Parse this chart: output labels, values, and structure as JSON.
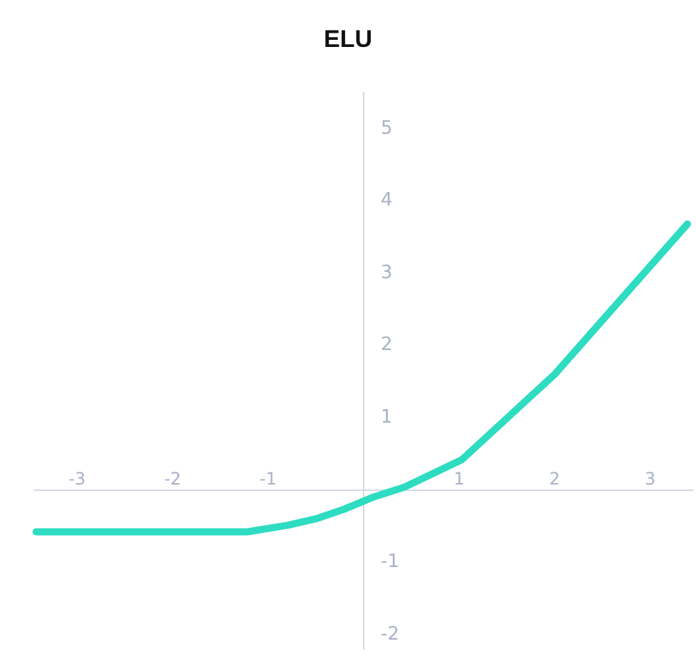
{
  "chart_data": {
    "type": "line",
    "title": "ELU",
    "x": [
      -3.43,
      -1.22,
      -0.8,
      -0.5,
      -0.19,
      0.1,
      0.43,
      1.03,
      2,
      3.39
    ],
    "series": [
      {
        "color": "#2ddcc1",
        "values": [
          -0.58,
          -0.58,
          -0.49,
          -0.4,
          -0.26,
          -0.1,
          0.04,
          0.42,
          1.6,
          3.68
        ]
      }
    ],
    "xlim": [
      -3.45,
      3.45
    ],
    "ylim": [
      -2.2,
      5.5
    ],
    "xticks": [
      -3,
      -2,
      -1,
      1,
      2,
      3
    ],
    "yticks": [
      -2,
      -1,
      1,
      2,
      3,
      4,
      5
    ],
    "grid": false,
    "marker": "none",
    "line_style": "solid"
  }
}
